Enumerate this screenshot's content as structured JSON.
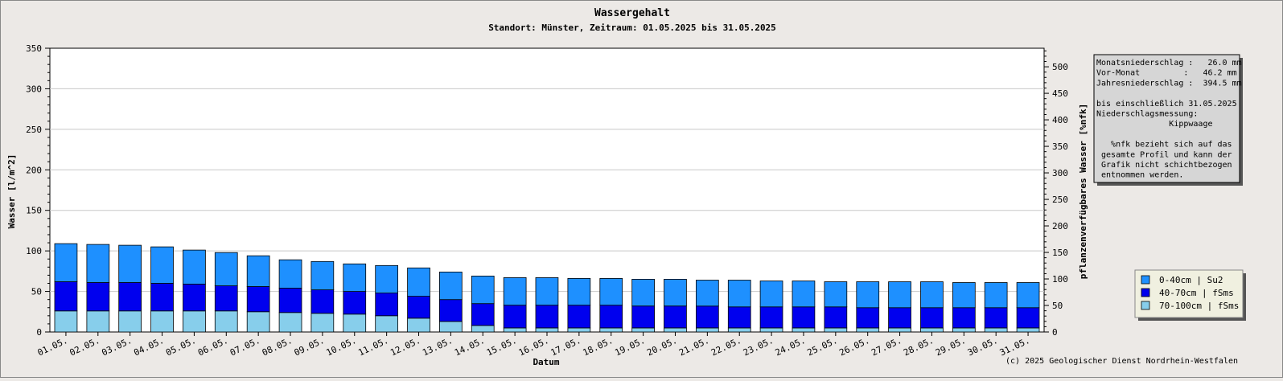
{
  "chart_data": {
    "type": "bar",
    "stacked": true,
    "title": "Wassergehalt",
    "subtitle": "Standort: Münster, Zeitraum: 01.05.2025 bis 31.05.2025",
    "xlabel": "Datum",
    "ylabel": "Wasser [l/m^2]",
    "ylabel_right": "pflanzenverfügbares Wasser [%nfk]",
    "ylim": [
      0,
      350
    ],
    "yticks": [
      0,
      50,
      100,
      150,
      200,
      250,
      300,
      350
    ],
    "ylim_right": [
      0,
      535
    ],
    "yticks_right": [
      0,
      50,
      100,
      150,
      200,
      250,
      300,
      350,
      400,
      450,
      500
    ],
    "grid": true,
    "legend_position": "bottom-right",
    "categories": [
      "01.05.",
      "02.05.",
      "03.05.",
      "04.05.",
      "05.05.",
      "06.05.",
      "07.05.",
      "08.05.",
      "09.05.",
      "10.05.",
      "11.05.",
      "12.05.",
      "13.05.",
      "14.05.",
      "15.05.",
      "16.05.",
      "17.05.",
      "18.05.",
      "19.05.",
      "20.05.",
      "21.05.",
      "22.05.",
      "23.05.",
      "24.05.",
      "25.05.",
      "26.05.",
      "27.05.",
      "28.05.",
      "29.05.",
      "30.05.",
      "31.05."
    ],
    "series": [
      {
        "name": "70-100cm | fSms",
        "color": "#87ceeb",
        "values": [
          26,
          26,
          26,
          26,
          26,
          26,
          25,
          24,
          23,
          22,
          20,
          17,
          13,
          8,
          5,
          5,
          5,
          5,
          5,
          5,
          5,
          5,
          5,
          5,
          5,
          5,
          5,
          5,
          5,
          5,
          5
        ]
      },
      {
        "name": "40-70cm | fSms",
        "color": "#0000ee",
        "values": [
          36,
          35,
          35,
          34,
          33,
          31,
          31,
          30,
          29,
          28,
          28,
          27,
          27,
          27,
          28,
          28,
          28,
          28,
          27,
          27,
          27,
          26,
          26,
          26,
          26,
          25,
          25,
          25,
          25,
          25,
          25
        ]
      },
      {
        "name": "0-40cm | Su2",
        "color": "#1e90ff",
        "values": [
          47,
          47,
          46,
          45,
          42,
          41,
          38,
          35,
          35,
          34,
          34,
          35,
          34,
          34,
          34,
          34,
          33,
          33,
          33,
          33,
          32,
          33,
          32,
          32,
          31,
          32,
          32,
          32,
          31,
          31,
          31
        ]
      }
    ]
  },
  "info_box": {
    "lines": [
      "Monatsniederschlag :   26.0 mm",
      "Vor-Monat         :   46.2 mm",
      "Jahresniederschlag :  394.5 mm",
      "",
      "bis einschließlich 31.05.2025",
      "Niederschlagsmessung:",
      "               Kippwaage",
      "",
      "   %nfk bezieht sich auf das",
      " gesamte Profil und kann der",
      " Grafik nicht schichtbezogen",
      " entnommen werden."
    ]
  },
  "legend": {
    "items": [
      {
        "label": "0-40cm | Su2",
        "color": "#1e90ff"
      },
      {
        "label": "40-70cm | fSms",
        "color": "#0000ee"
      },
      {
        "label": "70-100cm | fSms",
        "color": "#87ceeb"
      }
    ]
  },
  "footer": {
    "copyright": "(c) 2025 Geologischer Dienst Nordrhein-Westfalen"
  }
}
